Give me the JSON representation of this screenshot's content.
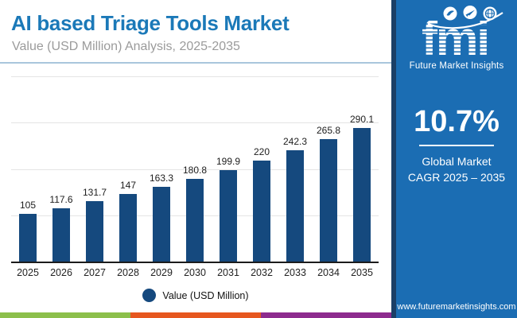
{
  "header": {
    "title": "AI based Triage Tools Market",
    "subtitle": "Value (USD Million) Analysis, 2025-2035"
  },
  "chart_data": {
    "type": "bar",
    "categories": [
      "2025",
      "2026",
      "2027",
      "2028",
      "2029",
      "2030",
      "2031",
      "2032",
      "2033",
      "2034",
      "2035"
    ],
    "values": [
      105,
      117.6,
      131.7,
      147,
      163.3,
      180.8,
      199.9,
      220,
      242.3,
      265.8,
      290.1
    ],
    "title": "AI based Triage Tools Market",
    "xlabel": "",
    "ylabel": "",
    "ylim": [
      0,
      400
    ],
    "gridlines": [
      100,
      200,
      300,
      400
    ],
    "grid": "horizontal-only",
    "data_labels": true,
    "legend_entries": [
      "Value (USD Million)"
    ],
    "legend_position": "bottom",
    "bar_color": "#15497E"
  },
  "legend": {
    "label": "Value (USD Million)"
  },
  "sidebar": {
    "logo": {
      "text": "fmi",
      "tagline": "Future Market Insights",
      "icons": [
        "bird-icon",
        "plane-icon",
        "globe-icon"
      ]
    },
    "cagr": {
      "value": "10.7%",
      "line1": "Global Market",
      "line2": "CAGR 2025 – 2035"
    },
    "website": "www.futuremarketinsights.com"
  },
  "footer_stripe": {
    "colors": [
      "#8CBF4B",
      "#E6571F",
      "#8D2B8E"
    ]
  },
  "colors": {
    "title_blue": "#1B79B8",
    "subtitle_gray": "#9B9B9B",
    "bar_navy": "#15497E",
    "sidebar_blue": "#1B6DB3",
    "sidebar_border_navy": "#1B3F66",
    "gridline_gray": "#E4E4E4",
    "header_rule_blue": "#A9C6DC"
  }
}
